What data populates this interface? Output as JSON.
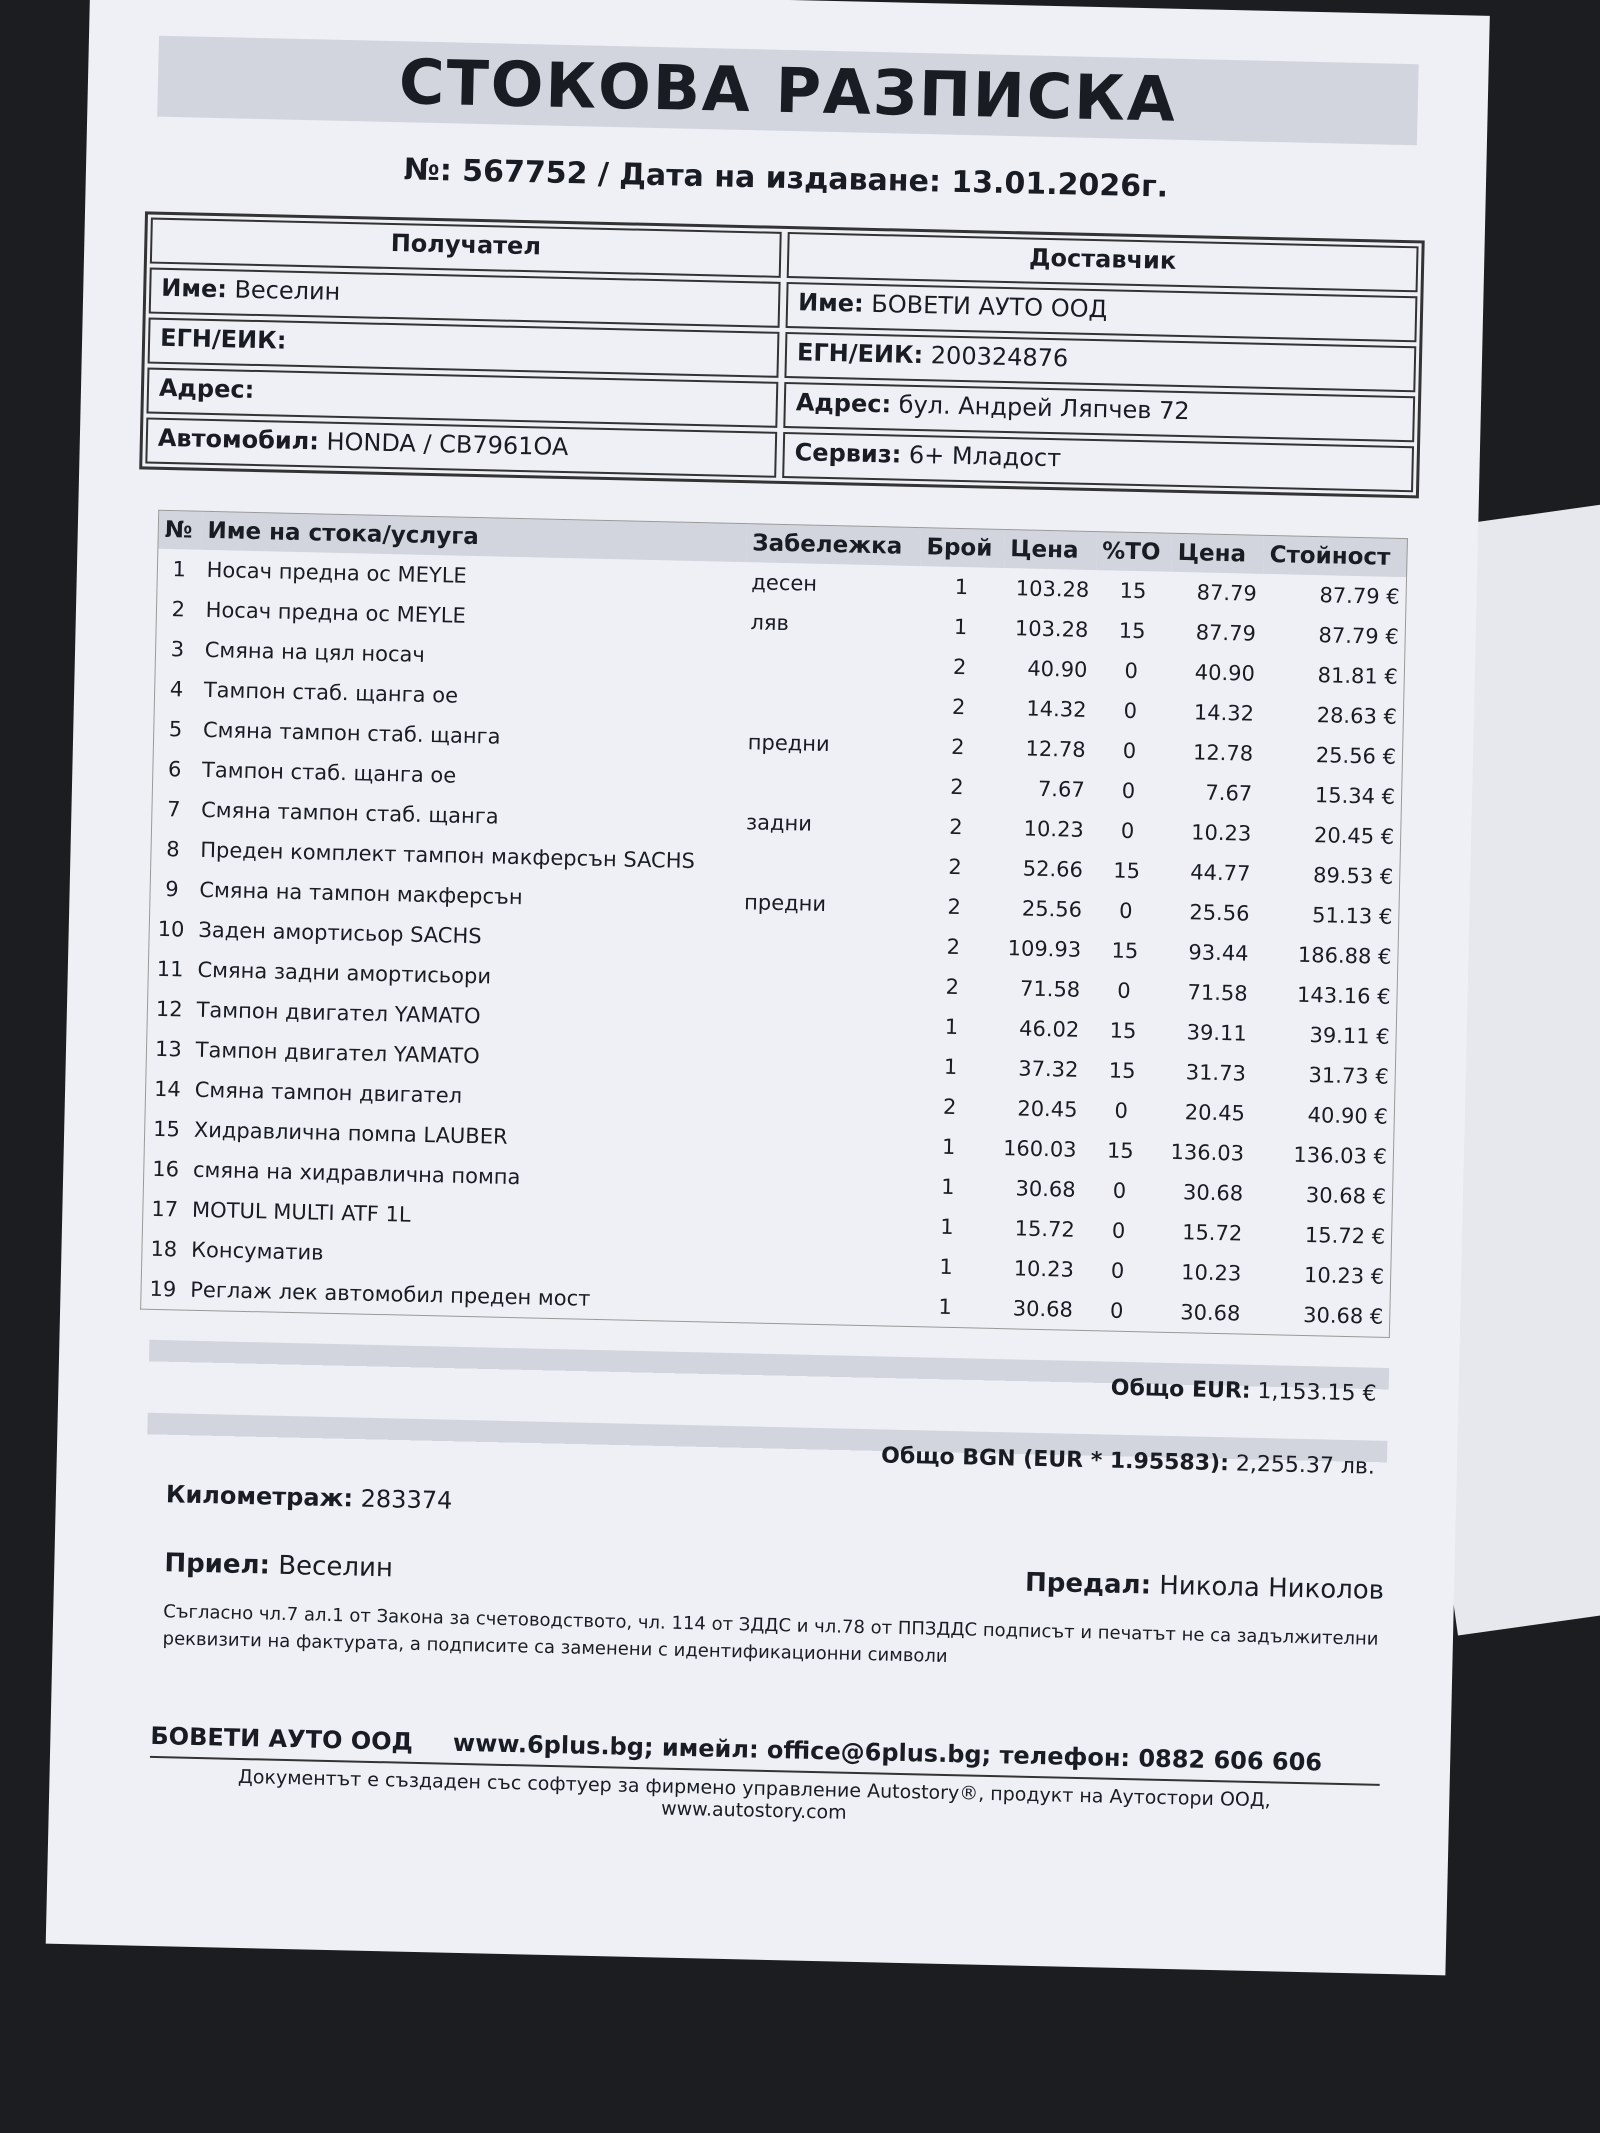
{
  "header": {
    "title": "СТОКОВА РАЗПИСКА",
    "number_line": "№: 567752 / Дата на издаване: 13.01.2026г."
  },
  "parties": {
    "recipient": {
      "heading": "Получател",
      "fields": [
        {
          "label": "Име:",
          "value": "Веселин"
        },
        {
          "label": "ЕГН/ЕИК:"
        },
        {
          "label": "Адрес:"
        },
        {
          "label": "Автомобил:",
          "value": "HONDA / CB7961OA"
        }
      ]
    },
    "supplier": {
      "heading": "Доставчик",
      "fields": [
        {
          "label": "Име:",
          "value": "БОВЕТИ АУТО ООД"
        },
        {
          "label": "ЕГН/ЕИК:",
          "value": "200324876"
        },
        {
          "label": "Адрес:",
          "value": "бул. Андрей Ляпчев 72"
        },
        {
          "label": "Сервиз:",
          "value": "6+ Младост"
        }
      ]
    }
  },
  "table": {
    "columns": [
      "№",
      "Име на стока/услуга",
      "Забележка",
      "Брой",
      "Цена",
      "%ТО",
      "Цена",
      "Стойност"
    ],
    "rows": [
      [
        "1",
        "Носач предна ос MEYLE",
        "десен",
        "1",
        "103.28",
        "15",
        "87.79",
        "87.79 €"
      ],
      [
        "2",
        "Носач предна ос MEYLE",
        "ляв",
        "1",
        "103.28",
        "15",
        "87.79",
        "87.79 €"
      ],
      [
        "3",
        "Смяна на цял носач",
        null,
        "2",
        "40.90",
        "0",
        "40.90",
        "81.81 €"
      ],
      [
        "4",
        "Тампон стаб. щанга ое",
        null,
        "2",
        "14.32",
        "0",
        "14.32",
        "28.63 €"
      ],
      [
        "5",
        "Смяна тампон стаб. щанга",
        "предни",
        "2",
        "12.78",
        "0",
        "12.78",
        "25.56 €"
      ],
      [
        "6",
        "Тампон стаб. щанга ое",
        null,
        "2",
        "7.67",
        "0",
        "7.67",
        "15.34 €"
      ],
      [
        "7",
        "Смяна тампон стаб. щанга",
        "задни",
        "2",
        "10.23",
        "0",
        "10.23",
        "20.45 €"
      ],
      [
        "8",
        "Преден комплект тампон макферсън SACHS",
        null,
        "2",
        "52.66",
        "15",
        "44.77",
        "89.53 €"
      ],
      [
        "9",
        "Смяна на тампон макферсън",
        "предни",
        "2",
        "25.56",
        "0",
        "25.56",
        "51.13 €"
      ],
      [
        "10",
        "Заден амортисьор SACHS",
        null,
        "2",
        "109.93",
        "15",
        "93.44",
        "186.88 €"
      ],
      [
        "11",
        "Смяна задни амортисьори",
        null,
        "2",
        "71.58",
        "0",
        "71.58",
        "143.16 €"
      ],
      [
        "12",
        "Тампон двигател YAMATO",
        null,
        "1",
        "46.02",
        "15",
        "39.11",
        "39.11 €"
      ],
      [
        "13",
        "Тампон двигател YAMATO",
        null,
        "1",
        "37.32",
        "15",
        "31.73",
        "31.73 €"
      ],
      [
        "14",
        "Смяна тампон двигател",
        null,
        "2",
        "20.45",
        "0",
        "20.45",
        "40.90 €"
      ],
      [
        "15",
        "Хидравлична помпа LAUBER",
        null,
        "1",
        "160.03",
        "15",
        "136.03",
        "136.03 €"
      ],
      [
        "16",
        "смяна на хидравлична помпа",
        null,
        "1",
        "30.68",
        "0",
        "30.68",
        "30.68 €"
      ],
      [
        "17",
        "MOTUL MULTI ATF 1L",
        null,
        "1",
        "15.72",
        "0",
        "15.72",
        "15.72 €"
      ],
      [
        "18",
        "Консуматив",
        null,
        "1",
        "10.23",
        "0",
        "10.23",
        "10.23 €"
      ],
      [
        "19",
        "Реглаж лек автомобил преден мост",
        null,
        "1",
        "30.68",
        "0",
        "30.68",
        "30.68 €"
      ]
    ]
  },
  "totals": [
    {
      "label": "Общо EUR:",
      "value": "1,153.15 €"
    },
    {
      "label": "Общо BGN (EUR * 1.95583):",
      "value": "2,255.37 лв."
    }
  ],
  "mileage": {
    "label": "Километраж:",
    "value": "283374"
  },
  "signatures": {
    "received": {
      "label": "Приел:",
      "value": "Веселин"
    },
    "handed": {
      "label": "Предал:",
      "value": "Никола Николов"
    }
  },
  "legal_note": "Съгласно чл.7 ал.1 от Закона за счетоводството, чл. 114 от ЗДДС и чл.78 от ППЗДДС подписът и печатът не са задължителни реквизити на фактурата, а подписите са заменени с идентификационни символи",
  "footer": {
    "company": "БОВЕТИ АУТО ООД",
    "contacts": "www.6plus.bg; имейл: office@6plus.bg; телефон: 0882 606 606",
    "software": "Документът е създаден със софтуер за фирмено управление Autostory®, продукт на Аутостори ООД, www.autostory.com"
  }
}
